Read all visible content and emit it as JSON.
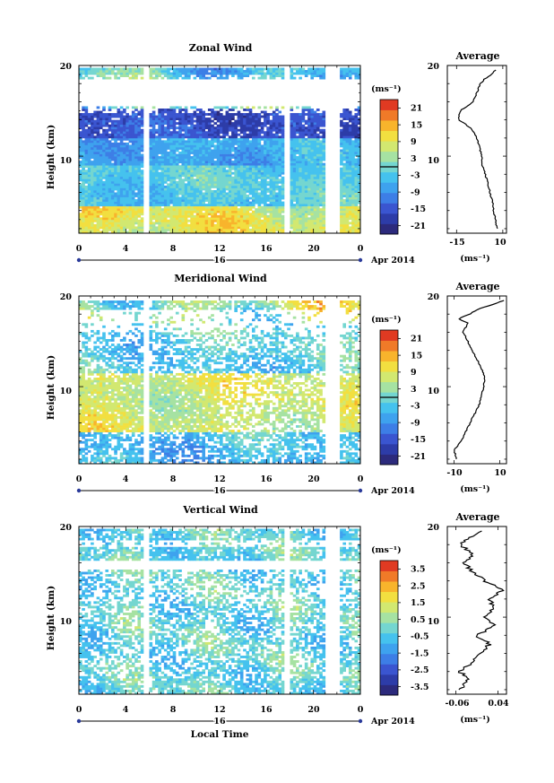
{
  "colormap": [
    "#2c2a7c",
    "#2d3ca8",
    "#3a55d0",
    "#3d7ee6",
    "#3ea2ee",
    "#45c2ee",
    "#74d6d0",
    "#a6e2a2",
    "#d2e870",
    "#f2df40",
    "#f8b42c",
    "#f07a28",
    "#e03a22"
  ],
  "shared": {
    "xlabel": "Local Time",
    "date_label": "Apr 2014",
    "day_label": "16",
    "xticks": [
      "0",
      "4",
      "8",
      "12",
      "16",
      "20",
      "0"
    ],
    "unit": "(ms⁻¹)"
  },
  "chart_data": [
    {
      "type": "heatmap",
      "title": "Zonal Wind",
      "ylabel": "Height (km)",
      "yticks": [
        "10",
        "20"
      ],
      "ylim": [
        1.5,
        20
      ],
      "xlim": [
        0,
        24
      ],
      "colorbar_ticks": [
        "21",
        "15",
        "9",
        "3",
        "-3",
        "-9",
        "-15",
        "-21"
      ],
      "colorbar_range": [
        -24,
        24
      ],
      "data_gaps_hours": [
        [
          5.5,
          6.0
        ],
        [
          17.5,
          18.0
        ],
        [
          21.0,
          22.2
        ]
      ],
      "profile": {
        "title": "Average",
        "xlabel": "(ms⁻¹)",
        "xticks": [
          "-15",
          "10"
        ],
        "xlim": [
          -20,
          12
        ],
        "heights": [
          2,
          3,
          4,
          5,
          6,
          7,
          8,
          9,
          10,
          11,
          12,
          13,
          13.5,
          14,
          15,
          16,
          16.5,
          17,
          18,
          18.5,
          19,
          19.5
        ],
        "values": [
          7,
          6,
          5,
          4.5,
          3,
          2,
          0.5,
          -1,
          -1.5,
          -2.5,
          -4,
          -7,
          -10,
          -14,
          -13,
          -6,
          -5,
          -4,
          -2,
          0,
          4,
          6
        ]
      }
    },
    {
      "type": "heatmap",
      "title": "Meridional Wind",
      "ylabel": "Height (km)",
      "yticks": [
        "10",
        "20"
      ],
      "ylim": [
        1.5,
        20
      ],
      "xlim": [
        0,
        24
      ],
      "colorbar_ticks": [
        "21",
        "15",
        "9",
        "3",
        "-3",
        "-9",
        "-15",
        "-21"
      ],
      "colorbar_range": [
        -24,
        24
      ],
      "data_gaps_hours": [
        [
          5.5,
          6.0
        ],
        [
          21.0,
          22.2
        ]
      ],
      "profile": {
        "title": "Average",
        "xlabel": "(ms⁻¹)",
        "xticks": [
          "-10",
          "10"
        ],
        "xlim": [
          -13,
          13
        ],
        "heights": [
          2,
          3,
          4,
          5,
          6,
          7,
          8,
          9,
          10,
          11,
          12,
          13,
          14,
          15,
          16,
          17,
          17.5,
          18,
          18.5,
          19,
          19.5
        ],
        "values": [
          -9,
          -10,
          -7,
          -5,
          -3,
          -1,
          1,
          2,
          3,
          3.5,
          2,
          0,
          -2,
          -4,
          -6,
          -4,
          -8,
          -3,
          0,
          6,
          12
        ]
      }
    },
    {
      "type": "heatmap",
      "title": "Vertical Wind",
      "ylabel": "Height (km)",
      "yticks": [
        "10",
        "20"
      ],
      "ylim": [
        1.5,
        20
      ],
      "xlim": [
        0,
        24
      ],
      "colorbar_ticks": [
        "3.5",
        "2.5",
        "1.5",
        "0.5",
        "-0.5",
        "-1.5",
        "-2.5",
        "-3.5"
      ],
      "colorbar_range": [
        -4,
        4
      ],
      "data_gaps_hours": [
        [
          5.5,
          6.0
        ],
        [
          17.5,
          18.0
        ],
        [
          21.0,
          22.2
        ]
      ],
      "profile": {
        "title": "Average",
        "xlabel": "(ms⁻¹)",
        "xticks": [
          "-0.06",
          "0.04"
        ],
        "xlim": [
          -0.08,
          0.06
        ],
        "heights": [
          2,
          3,
          4,
          5,
          6,
          7,
          8,
          9,
          10,
          11,
          12,
          13,
          14,
          15,
          16,
          17,
          18,
          19,
          19.5
        ],
        "values": [
          -0.05,
          -0.03,
          -0.05,
          -0.02,
          0.0,
          0.02,
          -0.01,
          0.03,
          0.01,
          0.03,
          0.02,
          0.05,
          0.01,
          -0.02,
          -0.04,
          -0.02,
          -0.05,
          -0.02,
          0.0
        ]
      }
    }
  ]
}
